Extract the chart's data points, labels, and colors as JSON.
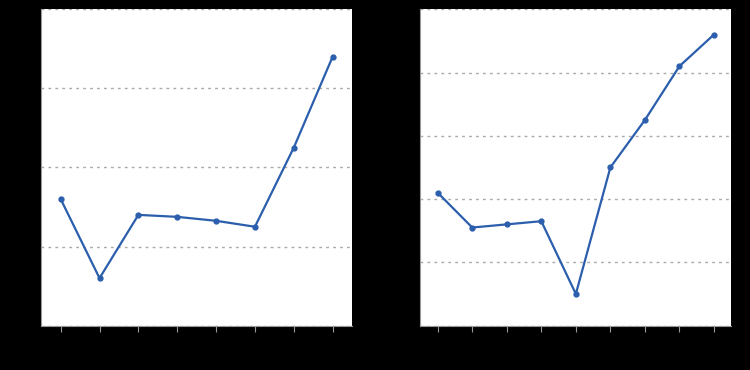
{
  "left_x": [
    1,
    2,
    3,
    4,
    5,
    6,
    7,
    8
  ],
  "left_y": [
    3.2,
    1.2,
    2.8,
    2.75,
    2.65,
    2.5,
    4.5,
    6.8
  ],
  "right_x": [
    1,
    2,
    3,
    4,
    5,
    6,
    7,
    8,
    9
  ],
  "right_y": [
    4.2,
    3.1,
    3.2,
    3.3,
    1.0,
    5.0,
    6.5,
    8.2,
    9.2
  ],
  "line_color": "#2b5eac",
  "marker_style": "o",
  "marker_size": 3.5,
  "line_width": 1.6,
  "figure_bg_color": "#000000",
  "plot_bg_color": "#ffffff",
  "grid_color": "#aaaaaa",
  "spine_color": "#999999",
  "left_ylim": [
    0,
    8
  ],
  "right_ylim": [
    0,
    10
  ],
  "left_yticks_count": 5,
  "right_yticks_count": 6
}
